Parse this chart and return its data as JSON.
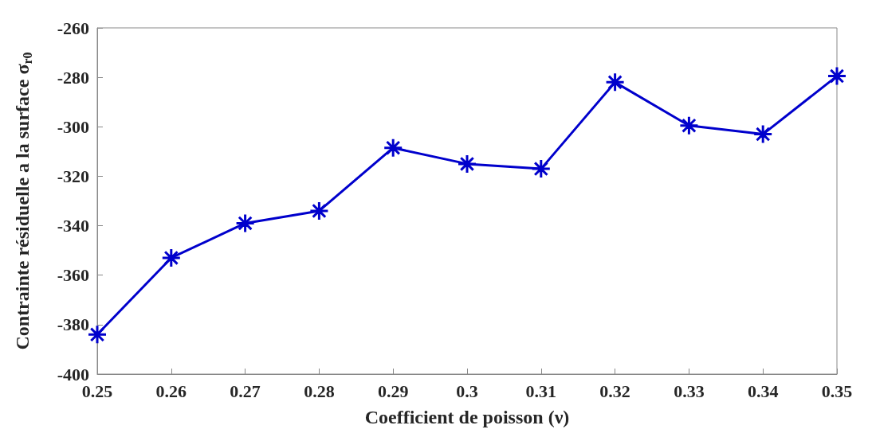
{
  "chart_data": {
    "type": "line",
    "xlabel": "Coefficient de poisson (ν)",
    "ylabel": "Contrainte résiduelle a la surface σ$_{r0}$",
    "x": [
      0.25,
      0.26,
      0.27,
      0.28,
      0.29,
      0.3,
      0.31,
      0.32,
      0.33,
      0.34,
      0.35
    ],
    "series": [
      {
        "color": "#0000cc",
        "values": [
          -384,
          -353,
          -339,
          -334,
          -308.5,
          -315,
          -317,
          -282,
          -299.5,
          -303,
          -279.5
        ]
      }
    ],
    "xlim": [
      0.25,
      0.35
    ],
    "xticks": [
      0.25,
      0.26,
      0.27,
      0.28,
      0.29,
      0.3,
      0.31,
      0.32,
      0.33,
      0.34,
      0.35
    ],
    "ylim": [
      -400,
      -260
    ],
    "yticks": [
      -400,
      -380,
      -360,
      -340,
      -320,
      -300,
      -280,
      -260
    ],
    "grid": false,
    "marker": "cross",
    "line_style": "solid"
  }
}
